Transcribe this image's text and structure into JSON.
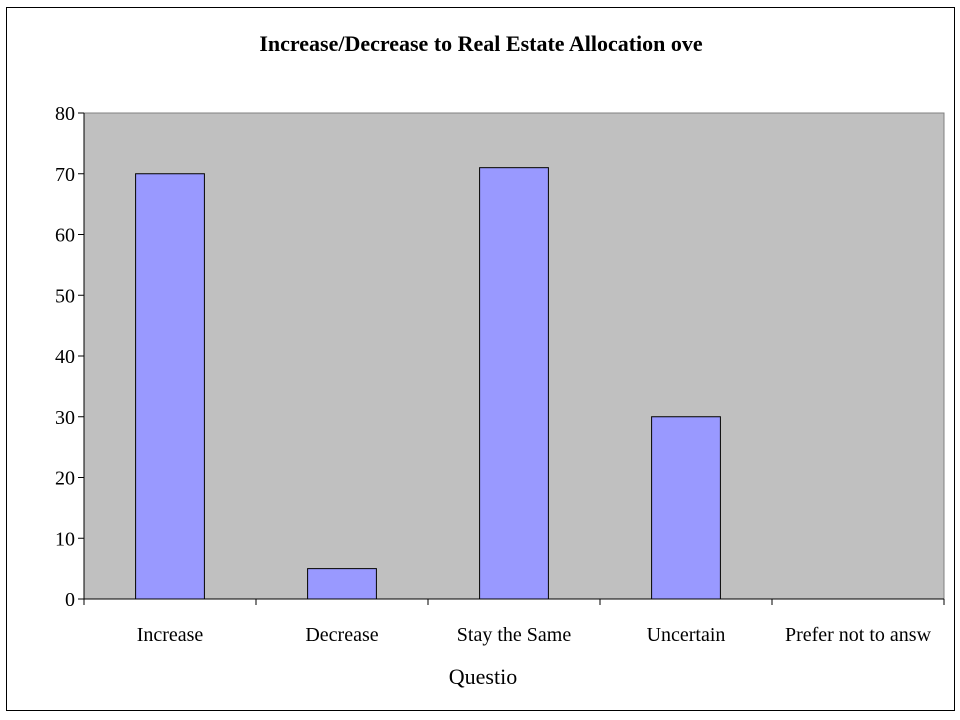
{
  "chart_data": {
    "type": "bar",
    "title": "Increase/Decrease to Real Estate Allocation ove",
    "xlabel": "Questio",
    "ylabel": "",
    "categories": [
      "Increase",
      "Decrease",
      "Stay the Same",
      "Uncertain",
      "Prefer not to answ"
    ],
    "values": [
      70,
      5,
      71,
      30,
      0
    ],
    "ylim": [
      0,
      80
    ],
    "yticks": [
      0,
      10,
      20,
      30,
      40,
      50,
      60,
      70,
      80
    ],
    "grid": false,
    "legend": "none",
    "colors": {
      "bar_fill": "#9999ff",
      "bar_stroke": "#000000",
      "plot_background": "#c0c0c0",
      "page_background": "#ffffff"
    }
  }
}
